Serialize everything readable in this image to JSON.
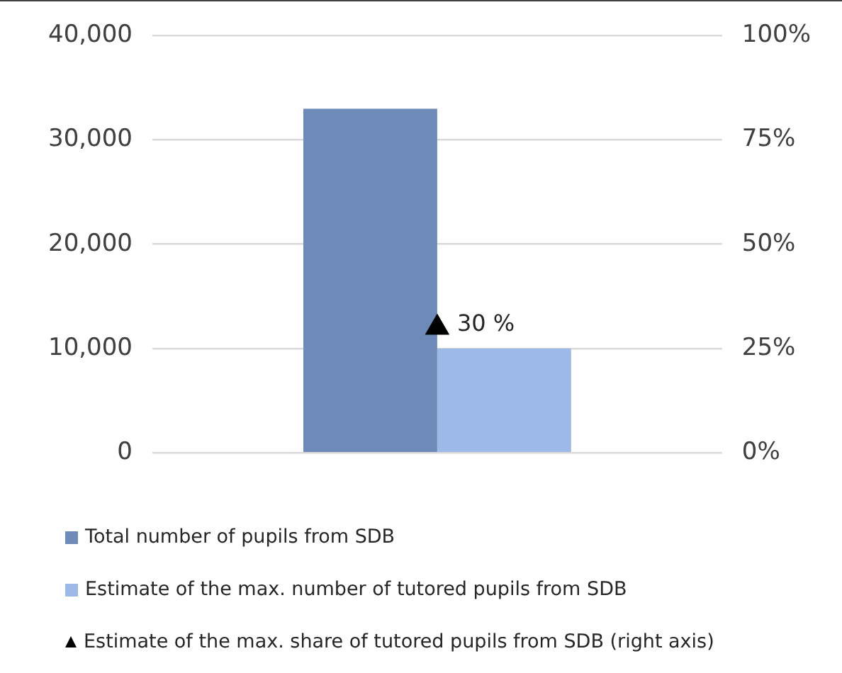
{
  "chart_data": {
    "type": "bar",
    "categories": [
      null
    ],
    "series": [
      {
        "name": "Total number of pupils from SDB",
        "color": "#6d8ab8",
        "values": [
          33000
        ]
      },
      {
        "name": "Estimate of the max. number of tutored pupils from SDB",
        "color": "#9db9e8",
        "values": [
          10000
        ]
      },
      {
        "name": "Estimate of the max. share of tutored pupils from SDB (right axis)",
        "type": "scatter",
        "axis": "y2",
        "color": "#000000",
        "values": [
          30
        ],
        "value_labels": [
          "30 %"
        ]
      }
    ],
    "ylim": [
      0,
      40000
    ],
    "yticks": [
      {
        "value": 0,
        "label": "0"
      },
      {
        "value": 10000,
        "label": "10,000"
      },
      {
        "value": 20000,
        "label": "20,000"
      },
      {
        "value": 30000,
        "label": "30,000"
      },
      {
        "value": 40000,
        "label": "40,000"
      }
    ],
    "y2lim": [
      0,
      100
    ],
    "y2ticks": [
      {
        "value": 0,
        "label": "0%"
      },
      {
        "value": 25,
        "label": "25%"
      },
      {
        "value": 50,
        "label": "50%"
      },
      {
        "value": 75,
        "label": "75%"
      },
      {
        "value": 100,
        "label": "100%"
      }
    ],
    "grid": "y",
    "legend": "bottom",
    "marker": "triangle"
  }
}
